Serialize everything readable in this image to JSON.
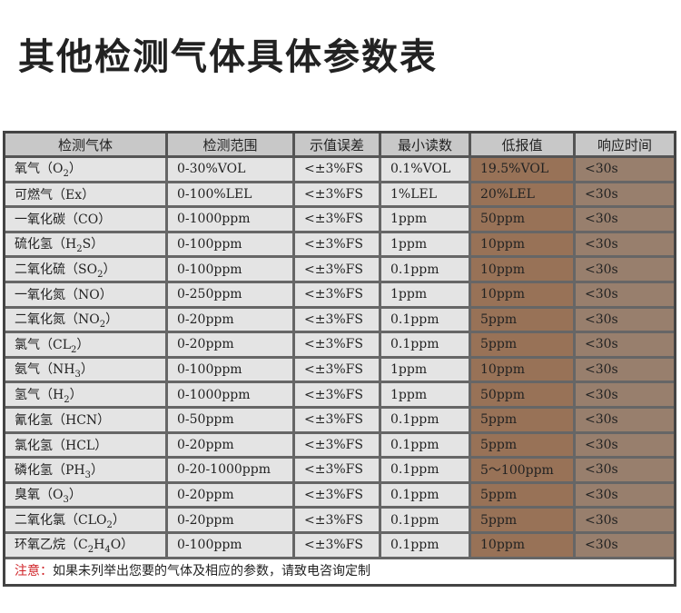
{
  "title": "其他检测气体具体参数表",
  "headers": [
    "检测气体",
    "检测范围",
    "示值误差",
    "最小读数",
    "低报值",
    "响应时间"
  ],
  "rows": [
    {
      "name": [
        {
          "t": "氧气（O"
        },
        {
          "sub": "2"
        },
        {
          "t": "）"
        }
      ],
      "cells": [
        "0-30%VOL",
        "<±3%FS",
        "0.1%VOL",
        "19.5%VOL",
        "<30s"
      ]
    },
    {
      "name": [
        {
          "t": "可燃气（Ex）"
        }
      ],
      "cells": [
        "0-100%LEL",
        "<±3%FS",
        "1%LEL",
        "20%LEL",
        "<30s"
      ]
    },
    {
      "name": [
        {
          "t": "一氧化碳（CO）"
        }
      ],
      "cells": [
        "0-1000ppm",
        "<±3%FS",
        "1ppm",
        "50ppm",
        "<30s"
      ]
    },
    {
      "name": [
        {
          "t": "硫化氢（H"
        },
        {
          "sub": "2"
        },
        {
          "t": "S）"
        }
      ],
      "cells": [
        "0-100ppm",
        "<±3%FS",
        "1ppm",
        "10ppm",
        "<30s"
      ]
    },
    {
      "name": [
        {
          "t": "二氧化硫（SO"
        },
        {
          "sub": "2"
        },
        {
          "t": "）"
        }
      ],
      "cells": [
        "0-100ppm",
        "<±3%FS",
        "0.1ppm",
        "10ppm",
        "<30s"
      ]
    },
    {
      "name": [
        {
          "t": "一氧化氮（NO）"
        }
      ],
      "cells": [
        "0-250ppm",
        "<±3%FS",
        "1ppm",
        "10ppm",
        "<30s"
      ]
    },
    {
      "name": [
        {
          "t": "二氧化氮（NO"
        },
        {
          "sub": "2"
        },
        {
          "t": "）"
        }
      ],
      "cells": [
        "0-20ppm",
        "<±3%FS",
        "0.1ppm",
        "5ppm",
        "<30s"
      ]
    },
    {
      "name": [
        {
          "t": "氯气（CL"
        },
        {
          "sub": "2"
        },
        {
          "t": "）"
        }
      ],
      "cells": [
        "0-20ppm",
        "<±3%FS",
        "0.1ppm",
        "5ppm",
        "<30s"
      ]
    },
    {
      "name": [
        {
          "t": "氨气（NH"
        },
        {
          "sub": "3"
        },
        {
          "t": "）"
        }
      ],
      "cells": [
        "0-100ppm",
        "<±3%FS",
        "1ppm",
        "10ppm",
        "<30s"
      ]
    },
    {
      "name": [
        {
          "t": "氢气（H"
        },
        {
          "sub": "2"
        },
        {
          "t": "）"
        }
      ],
      "cells": [
        "0-1000ppm",
        "<±3%FS",
        "1ppm",
        "50ppm",
        "<30s"
      ]
    },
    {
      "name": [
        {
          "t": "氰化氢（HCN）"
        }
      ],
      "cells": [
        "0-50ppm",
        "<±3%FS",
        "0.1ppm",
        "5ppm",
        "<30s"
      ]
    },
    {
      "name": [
        {
          "t": "氯化氢（HCL）"
        }
      ],
      "cells": [
        "0-20ppm",
        "<±3%FS",
        "0.1ppm",
        "5ppm",
        "<30s"
      ]
    },
    {
      "name": [
        {
          "t": "磷化氢（PH"
        },
        {
          "sub": "3"
        },
        {
          "t": "）"
        }
      ],
      "cells": [
        "0-20-1000ppm",
        "<±3%FS",
        "0.1ppm",
        "5～100ppm",
        "<30s"
      ]
    },
    {
      "name": [
        {
          "t": "臭氧（O"
        },
        {
          "sub": "3"
        },
        {
          "t": "）"
        }
      ],
      "cells": [
        "0-20ppm",
        "<±3%FS",
        "0.1ppm",
        "5ppm",
        "<30s"
      ]
    },
    {
      "name": [
        {
          "t": "二氧化氯（CLO"
        },
        {
          "sub": "2"
        },
        {
          "t": "）"
        }
      ],
      "cells": [
        "0-20ppm",
        "<±3%FS",
        "0.1ppm",
        "5ppm",
        "<30s"
      ]
    },
    {
      "name": [
        {
          "t": "环氧乙烷（C"
        },
        {
          "sub": "2"
        },
        {
          "t": "H"
        },
        {
          "sub": "4"
        },
        {
          "t": "O）"
        }
      ],
      "cells": [
        "0-100ppm",
        "<±3%FS",
        "0.1ppm",
        "10ppm",
        "<30s"
      ]
    }
  ],
  "note": {
    "label": "注意：",
    "text": "如果未列举出您要的气体及相应的参数，请致电咨询定制"
  },
  "colors": {
    "note_label": "#d0252a",
    "header_bg": "#c8c8c8",
    "device": "#f47a20"
  }
}
